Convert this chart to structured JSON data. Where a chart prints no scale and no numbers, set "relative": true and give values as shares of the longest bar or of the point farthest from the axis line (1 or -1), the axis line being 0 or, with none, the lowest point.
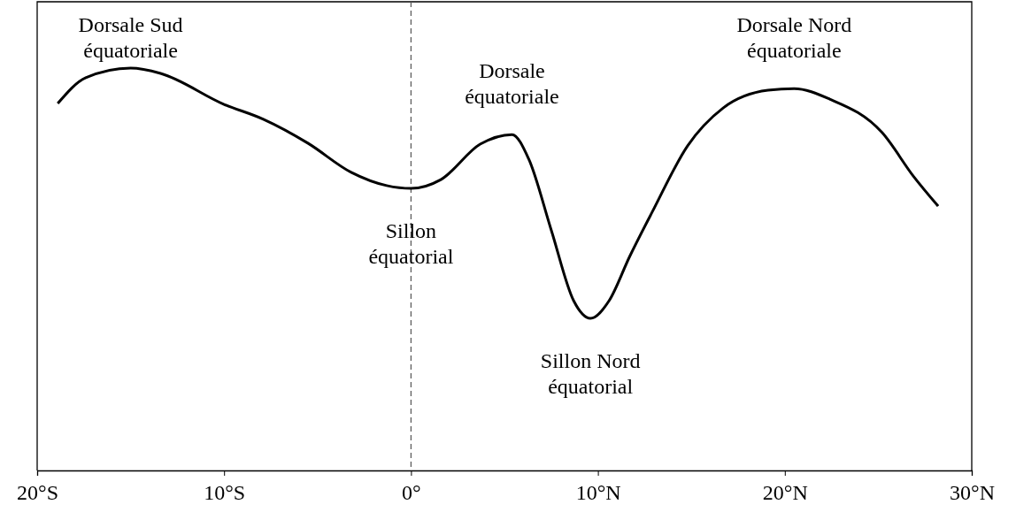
{
  "chart_data": {
    "type": "line",
    "relative": true,
    "x": [
      -18.9,
      -17.4,
      -15.0,
      -13.4,
      -10.0,
      -7.9,
      -5.5,
      -3.2,
      -1.3,
      0,
      1.6,
      3.7,
      5.4,
      6.3,
      7.5,
      8.7,
      9.6,
      10.6,
      11.7,
      12.9,
      14.8,
      16.7,
      19.1,
      20.5,
      22.4,
      25.2,
      26.9,
      28.2
    ],
    "series": [
      {
        "color": "#000000",
        "values": [
          0.912,
          0.976,
          1.0,
          0.987,
          0.91,
          0.873,
          0.813,
          0.741,
          0.708,
          0.701,
          0.723,
          0.811,
          0.835,
          0.774,
          0.598,
          0.422,
          0.378,
          0.422,
          0.532,
          0.642,
          0.807,
          0.901,
          0.945,
          0.949,
          0.923,
          0.84,
          0.73,
          0.657
        ]
      }
    ],
    "xlim": [
      -20,
      30
    ],
    "xticks": [
      {
        "value": -20,
        "label": "20°S"
      },
      {
        "value": -10,
        "label": "10°S"
      },
      {
        "value": 0,
        "label": "0°"
      },
      {
        "value": 10,
        "label": "10°N"
      },
      {
        "value": 20,
        "label": "20°N"
      },
      {
        "value": 30,
        "label": "30°N"
      }
    ],
    "ref_lines": [
      {
        "axis": "x",
        "value": 0,
        "color": "#555555",
        "line_style": "dashed"
      }
    ],
    "annotations": [
      {
        "text": "Dorsale Sud\néquatoriale",
        "x": -15.0,
        "y": 1.0
      },
      {
        "text": "Dorsale\néquatoriale",
        "x": 5.4,
        "y": 0.835
      },
      {
        "text": "Dorsale Nord\néquatoriale",
        "x": 20.5,
        "y": 0.949
      },
      {
        "text": "Sillon\néquatorial",
        "x": 0,
        "y": 0.701
      },
      {
        "text": "Sillon Nord\néquatorial",
        "x": 9.6,
        "y": 0.378
      }
    ],
    "grid": false,
    "marker": "none",
    "line_style": "solid"
  }
}
